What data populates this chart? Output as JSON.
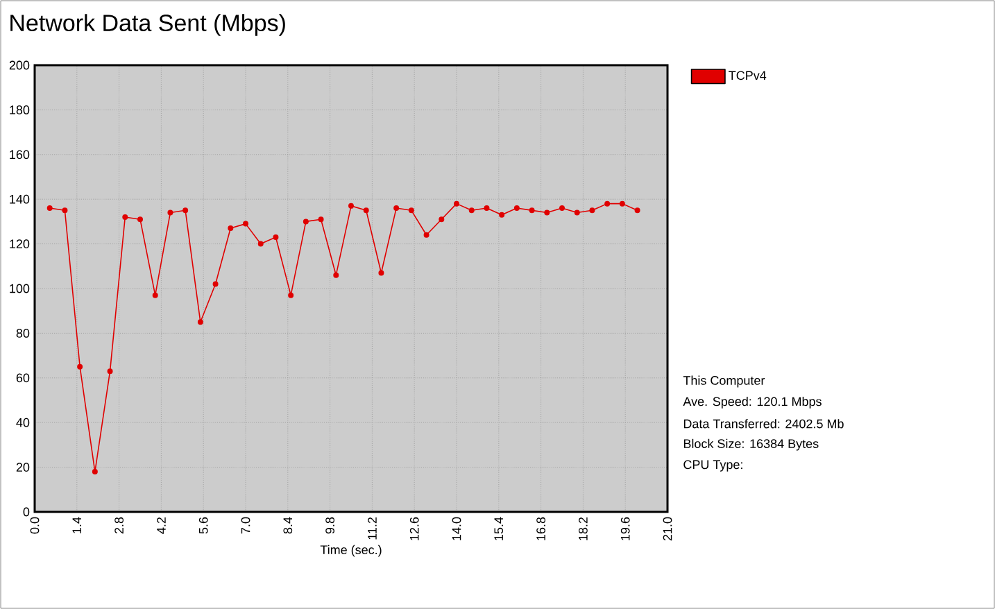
{
  "chart_data": {
    "type": "line",
    "title": "Network Data Sent (Mbps)",
    "xlabel": "Time (sec.)",
    "x": [
      0.5,
      1.0,
      1.5,
      2.0,
      2.5,
      3.0,
      3.5,
      4.0,
      4.5,
      5.0,
      5.5,
      6.0,
      6.5,
      7.0,
      7.5,
      8.0,
      8.5,
      9.0,
      9.5,
      10.0,
      10.5,
      11.0,
      11.5,
      12.0,
      12.5,
      13.0,
      13.5,
      14.0,
      14.5,
      15.0,
      15.5,
      16.0,
      16.5,
      17.0,
      17.5,
      18.0,
      18.5,
      19.0,
      19.5,
      20.0
    ],
    "series": [
      {
        "name": "TCPv4",
        "color": "#e00000",
        "values": [
          136,
          135,
          65,
          18,
          63,
          132,
          131,
          97,
          134,
          135,
          85,
          102,
          127,
          129,
          120,
          123,
          97,
          130,
          131,
          106,
          137,
          135,
          107,
          136,
          135,
          124,
          131,
          138,
          135,
          136,
          133,
          136,
          135,
          134,
          136,
          134,
          135,
          138,
          138,
          135
        ]
      }
    ],
    "xlim": [
      0,
      21
    ],
    "xticks": [
      {
        "value": 0,
        "label": "0.0"
      },
      1.4,
      2.8,
      4.2,
      5.6,
      {
        "value": 7,
        "label": "7.0"
      },
      8.4,
      9.8,
      11.2,
      12.6,
      {
        "value": 14,
        "label": "14.0"
      },
      15.4,
      16.8,
      18.2,
      19.6,
      {
        "value": 21,
        "label": "21.0"
      }
    ],
    "ylim": [
      0,
      200
    ],
    "yticks": [
      0,
      20,
      40,
      60,
      80,
      100,
      120,
      140,
      160,
      180,
      200
    ],
    "grid": true,
    "legend": "top right",
    "marker": "circle",
    "line_style": "solid",
    "annotations": [
      "This Computer",
      "Ave. Speed: 120.1 Mbps",
      "Data Transferred: 2402.5 Mb",
      "Block Size: 16384 Bytes",
      "CPU Type:"
    ]
  }
}
